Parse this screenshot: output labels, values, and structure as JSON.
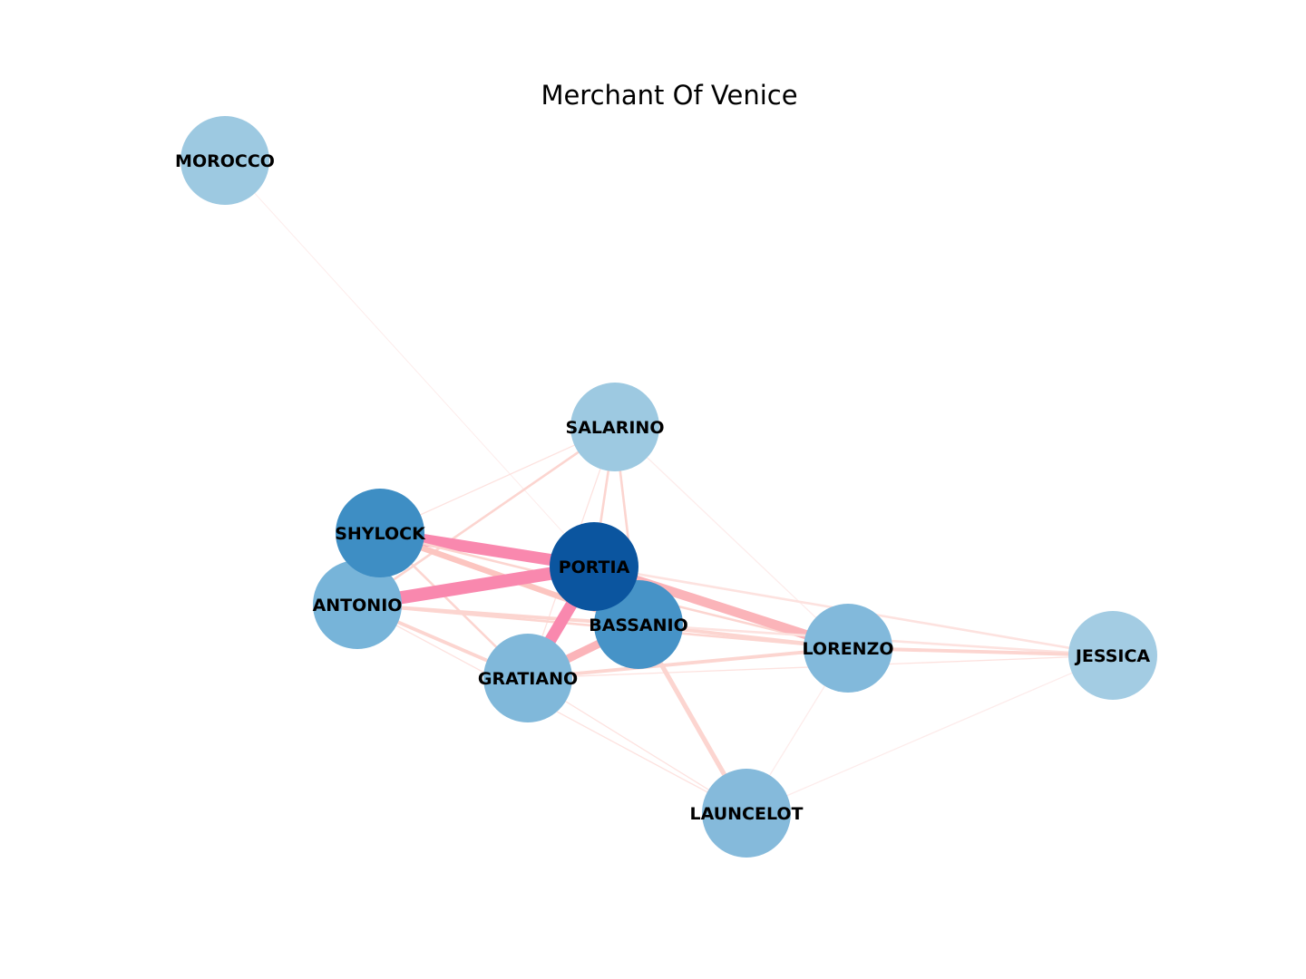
{
  "title": "Merchant Of Venice",
  "colors": {
    "background": "#ffffff",
    "edge_strong": "#f988ae",
    "edge_medium": "#fbb4b9",
    "edge_light": "#fcd5d0",
    "edge_faint": "#fdeceb",
    "node_darkest": "#0b559f",
    "node_dark": "#4292c6",
    "node_mid": "#6baed6",
    "node_light": "#9ecae1"
  },
  "nodes": [
    {
      "id": "MOROCCO",
      "label": "MOROCCO",
      "color": "#9dc9e1"
    },
    {
      "id": "SALARINO",
      "label": "SALARINO",
      "color": "#9dc9e1"
    },
    {
      "id": "SHYLOCK",
      "label": "SHYLOCK",
      "color": "#3e8ec4"
    },
    {
      "id": "ANTONIO",
      "label": "ANTONIO",
      "color": "#77b4d9"
    },
    {
      "id": "GRATIANO",
      "label": "GRATIANO",
      "color": "#80b8da"
    },
    {
      "id": "BASSANIO",
      "label": "BASSANIO",
      "color": "#4693c7"
    },
    {
      "id": "PORTIA",
      "label": "PORTIA",
      "color": "#0b559f"
    },
    {
      "id": "LORENZO",
      "label": "LORENZO",
      "color": "#82b9db"
    },
    {
      "id": "JESSICA",
      "label": "JESSICA",
      "color": "#a3cce3"
    },
    {
      "id": "LAUNCELOT",
      "label": "LAUNCELOT",
      "color": "#85badb"
    }
  ],
  "edges": [
    {
      "source": "MOROCCO",
      "target": "PORTIA",
      "weight": 0.5,
      "color": "#fdeceb"
    },
    {
      "source": "SALARINO",
      "target": "SHYLOCK",
      "weight": 1,
      "color": "#fde2df"
    },
    {
      "source": "SALARINO",
      "target": "ANTONIO",
      "weight": 2,
      "color": "#fcd5d0"
    },
    {
      "source": "SALARINO",
      "target": "GRATIANO",
      "weight": 1,
      "color": "#fde2df"
    },
    {
      "source": "SALARINO",
      "target": "BASSANIO",
      "weight": 2,
      "color": "#fcd5d0"
    },
    {
      "source": "SALARINO",
      "target": "PORTIA",
      "weight": 2,
      "color": "#fcd5d0"
    },
    {
      "source": "SALARINO",
      "target": "LORENZO",
      "weight": 1,
      "color": "#fdeceb"
    },
    {
      "source": "SHYLOCK",
      "target": "PORTIA",
      "weight": 10,
      "color": "#f988ae"
    },
    {
      "source": "SHYLOCK",
      "target": "BASSANIO",
      "weight": 5,
      "color": "#fcc5c0"
    },
    {
      "source": "SHYLOCK",
      "target": "GRATIANO",
      "weight": 2,
      "color": "#fcd5d0"
    },
    {
      "source": "SHYLOCK",
      "target": "ANTONIO",
      "weight": 3,
      "color": "#fcd5d0"
    },
    {
      "source": "SHYLOCK",
      "target": "LORENZO",
      "weight": 2,
      "color": "#fcd5d0"
    },
    {
      "source": "ANTONIO",
      "target": "PORTIA",
      "weight": 11,
      "color": "#f988ae"
    },
    {
      "source": "ANTONIO",
      "target": "BASSANIO",
      "weight": 3,
      "color": "#fcd5d0"
    },
    {
      "source": "ANTONIO",
      "target": "GRATIANO",
      "weight": 3,
      "color": "#fcd5d0"
    },
    {
      "source": "ANTONIO",
      "target": "LORENZO",
      "weight": 2,
      "color": "#fcd5d0"
    },
    {
      "source": "ANTONIO",
      "target": "LAUNCELOT",
      "weight": 1,
      "color": "#fde2df"
    },
    {
      "source": "PORTIA",
      "target": "GRATIANO",
      "weight": 10,
      "color": "#f988ae"
    },
    {
      "source": "PORTIA",
      "target": "LORENZO",
      "weight": 8,
      "color": "#fbb4b9"
    },
    {
      "source": "PORTIA",
      "target": "JESSICA",
      "weight": 2,
      "color": "#fde2df"
    },
    {
      "source": "GRATIANO",
      "target": "BASSANIO",
      "weight": 7,
      "color": "#fbb4b9"
    },
    {
      "source": "GRATIANO",
      "target": "LORENZO",
      "weight": 3,
      "color": "#fcd5d0"
    },
    {
      "source": "GRATIANO",
      "target": "JESSICA",
      "weight": 1,
      "color": "#fde2df"
    },
    {
      "source": "GRATIANO",
      "target": "LAUNCELOT",
      "weight": 1,
      "color": "#fde2df"
    },
    {
      "source": "BASSANIO",
      "target": "LORENZO",
      "weight": 3,
      "color": "#fcd5d0"
    },
    {
      "source": "BASSANIO",
      "target": "LAUNCELOT",
      "weight": 4,
      "color": "#fcd5d0"
    },
    {
      "source": "BASSANIO",
      "target": "JESSICA",
      "weight": 2,
      "color": "#fde2df"
    },
    {
      "source": "LORENZO",
      "target": "JESSICA",
      "weight": 3,
      "color": "#fcd5d0"
    },
    {
      "source": "LORENZO",
      "target": "LAUNCELOT",
      "weight": 1,
      "color": "#fdeceb"
    },
    {
      "source": "JESSICA",
      "target": "LAUNCELOT",
      "weight": 1,
      "color": "#fdeceb"
    }
  ]
}
